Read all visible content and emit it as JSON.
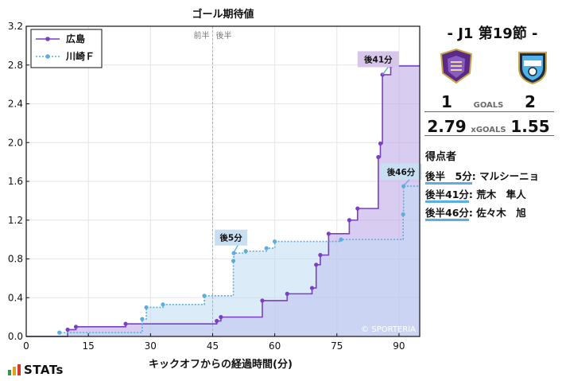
{
  "chart_data": {
    "type": "line",
    "title": "ゴール期待値",
    "xlabel": "キックオフからの経過時間(分)",
    "ylabel": "",
    "xlim": [
      0,
      95
    ],
    "ylim": [
      0,
      3.2
    ],
    "xticks": [
      0,
      15,
      30,
      45,
      60,
      75,
      90
    ],
    "yticks": [
      "0.0",
      "0.4",
      "0.8",
      "1.2",
      "1.6",
      "2.0",
      "2.4",
      "2.8",
      "3.2"
    ],
    "grid": true,
    "legend_position": "top-left",
    "halftime_minute": 45,
    "halftime_labels": {
      "first": "前半",
      "second": "後半"
    },
    "watermark": "© SPORTERIA",
    "series": [
      {
        "name": "広島",
        "color": "#7b3fc4",
        "fill": "#b9a2e6",
        "style": "solid",
        "end": 95,
        "points": [
          [
            0,
            0
          ],
          [
            10,
            0.07
          ],
          [
            12,
            0.1
          ],
          [
            24,
            0.13
          ],
          [
            46,
            0.16
          ],
          [
            47,
            0.2
          ],
          [
            57,
            0.37
          ],
          [
            63,
            0.44
          ],
          [
            69,
            0.5
          ],
          [
            70,
            0.74
          ],
          [
            71,
            0.84
          ],
          [
            73,
            1.06
          ],
          [
            78,
            1.2
          ],
          [
            80,
            1.32
          ],
          [
            85,
            1.85
          ],
          [
            85.5,
            1.99
          ],
          [
            86,
            2.7
          ],
          [
            88,
            2.79
          ]
        ]
      },
      {
        "name": "川崎Ｆ",
        "color": "#5aaee0",
        "fill": "#bfdaf3",
        "style": "dotted",
        "end": 95,
        "points": [
          [
            0,
            0
          ],
          [
            8,
            0.04
          ],
          [
            28,
            0.18
          ],
          [
            29,
            0.3
          ],
          [
            33,
            0.33
          ],
          [
            43,
            0.42
          ],
          [
            50,
            0.78
          ],
          [
            50.1,
            0.86
          ],
          [
            53,
            0.88
          ],
          [
            58,
            0.91
          ],
          [
            60,
            0.98
          ],
          [
            76,
            1.0
          ],
          [
            91,
            1.26
          ],
          [
            91.1,
            1.55
          ]
        ]
      }
    ],
    "annotations": [
      {
        "text": "後5分",
        "x": 50,
        "y": 0.86,
        "label_x": 45.5,
        "label_y": 1.02,
        "color": "#c8dff2"
      },
      {
        "text": "後41分",
        "x": 86,
        "y": 2.7,
        "label_x": 80,
        "label_y": 2.86,
        "color": "#d7c6ea"
      },
      {
        "text": "後46分",
        "x": 91,
        "y": 1.55,
        "label_x": 85.5,
        "label_y": 1.7,
        "color": "#c8dff2"
      }
    ]
  },
  "match": {
    "title": "-  J1 第19節  -",
    "home_crest": "sanfrecce-hiroshima-crest-icon",
    "away_crest": "kawasaki-frontale-crest-icon",
    "home_goals": "1",
    "away_goals": "2",
    "goals_label": "GOALS",
    "home_xg": "2.79",
    "away_xg": "1.55",
    "xg_label": "xGOALS"
  },
  "scorers": {
    "title": "得点者",
    "items": [
      {
        "time": "後半　5分",
        "name": "マルシーニョ"
      },
      {
        "time": "後半41分",
        "name": "荒木　隼人"
      },
      {
        "time": "後半46分",
        "name": "佐々木　旭"
      }
    ]
  },
  "brand": {
    "logo_text": "STATs",
    "colors": [
      "#2e9a4a",
      "#e0a21b",
      "#d23b2b"
    ]
  }
}
